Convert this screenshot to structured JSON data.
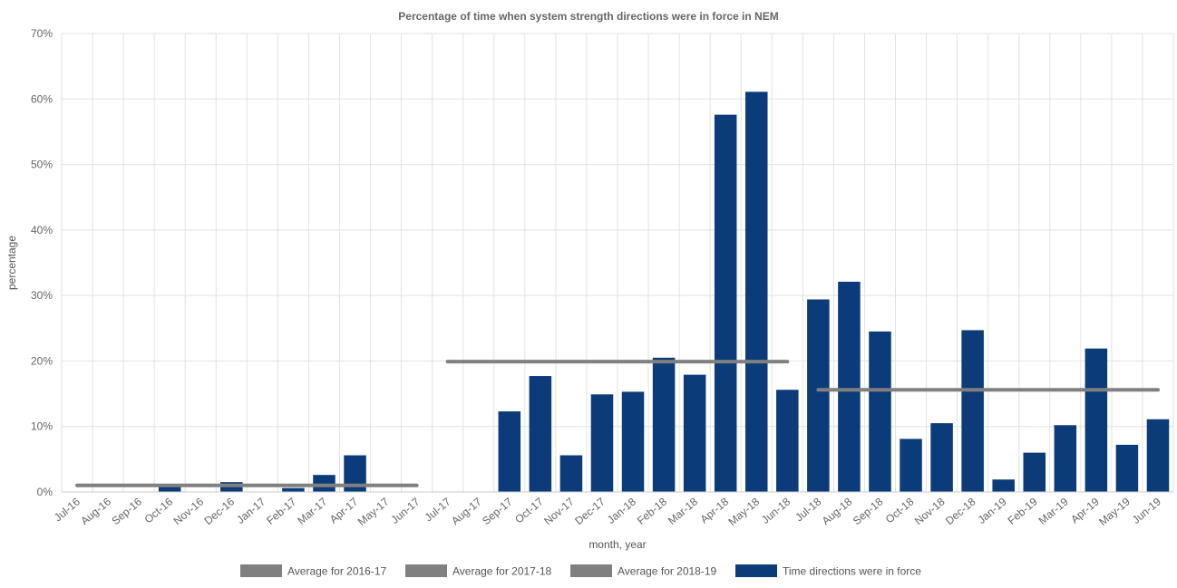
{
  "chart_data": {
    "type": "bar",
    "title": "Percentage of time when system strength directions were in force in NEM",
    "xlabel": "month, year",
    "ylabel": "percentage",
    "ylim": [
      0,
      70
    ],
    "y_ticks": [
      "0%",
      "10%",
      "20%",
      "30%",
      "40%",
      "50%",
      "60%",
      "70%"
    ],
    "grid": true,
    "legend_position": "bottom",
    "categories": [
      "Jul-16",
      "Aug-16",
      "Sep-16",
      "Oct-16",
      "Nov-16",
      "Dec-16",
      "Jan-17",
      "Feb-17",
      "Mar-17",
      "Apr-17",
      "May-17",
      "Jun-17",
      "Jul-17",
      "Aug-17",
      "Sep-17",
      "Oct-17",
      "Nov-17",
      "Dec-17",
      "Jan-18",
      "Feb-18",
      "Mar-18",
      "Apr-18",
      "May-18",
      "Jun-18",
      "Jul-18",
      "Aug-18",
      "Sep-18",
      "Oct-18",
      "Nov-18",
      "Dec-18",
      "Jan-19",
      "Feb-19",
      "Mar-19",
      "Apr-19",
      "May-19",
      "Jun-19"
    ],
    "series": [
      {
        "name": "Time directions were in force",
        "kind": "bar",
        "color": "#0b3b78",
        "values": [
          0,
          0,
          0,
          1.1,
          0,
          1.5,
          0,
          0.6,
          2.6,
          5.6,
          0,
          0,
          0,
          0,
          12.3,
          17.7,
          5.6,
          14.9,
          15.3,
          20.5,
          17.9,
          57.6,
          61.1,
          15.6,
          29.4,
          32.1,
          24.5,
          8.1,
          10.5,
          24.7,
          1.9,
          6.0,
          10.2,
          21.9,
          7.2,
          11.1
        ]
      },
      {
        "name": "Average for 2016-17",
        "kind": "line",
        "color": "#808080",
        "start": "Jul-16",
        "end": "Jun-17",
        "value": 1.0
      },
      {
        "name": "Average for 2017-18",
        "kind": "line",
        "color": "#808080",
        "start": "Jul-17",
        "end": "Jun-18",
        "value": 19.9
      },
      {
        "name": "Average for 2018-19",
        "kind": "line",
        "color": "#808080",
        "start": "Jul-18",
        "end": "Jun-19",
        "value": 15.6
      }
    ],
    "legend": [
      "Average for 2016-17",
      "Average for 2017-18",
      "Average for 2018-19",
      "Time directions were in force"
    ]
  }
}
